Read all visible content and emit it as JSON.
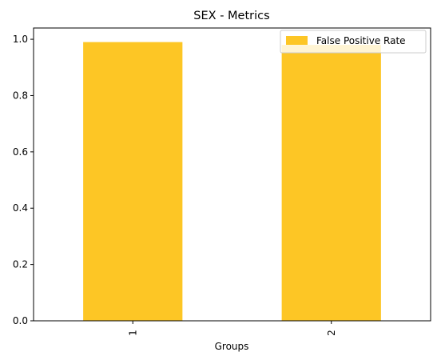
{
  "chart_data": {
    "type": "bar",
    "title": "SEX - Metrics",
    "xlabel": "Groups",
    "ylabel": "",
    "categories": [
      "1",
      "2"
    ],
    "series": [
      {
        "name": "False Positive Rate",
        "values": [
          0.99,
          0.98
        ]
      }
    ],
    "ylim": [
      0,
      1.04
    ],
    "yticks": [
      "0.0",
      "0.2",
      "0.4",
      "0.6",
      "0.8",
      "1.0"
    ],
    "ytick_values": [
      0,
      0.2,
      0.4,
      0.6,
      0.8,
      1.0
    ],
    "grid": false,
    "legend_position": "top-right",
    "bar_color": "#fdc625"
  }
}
